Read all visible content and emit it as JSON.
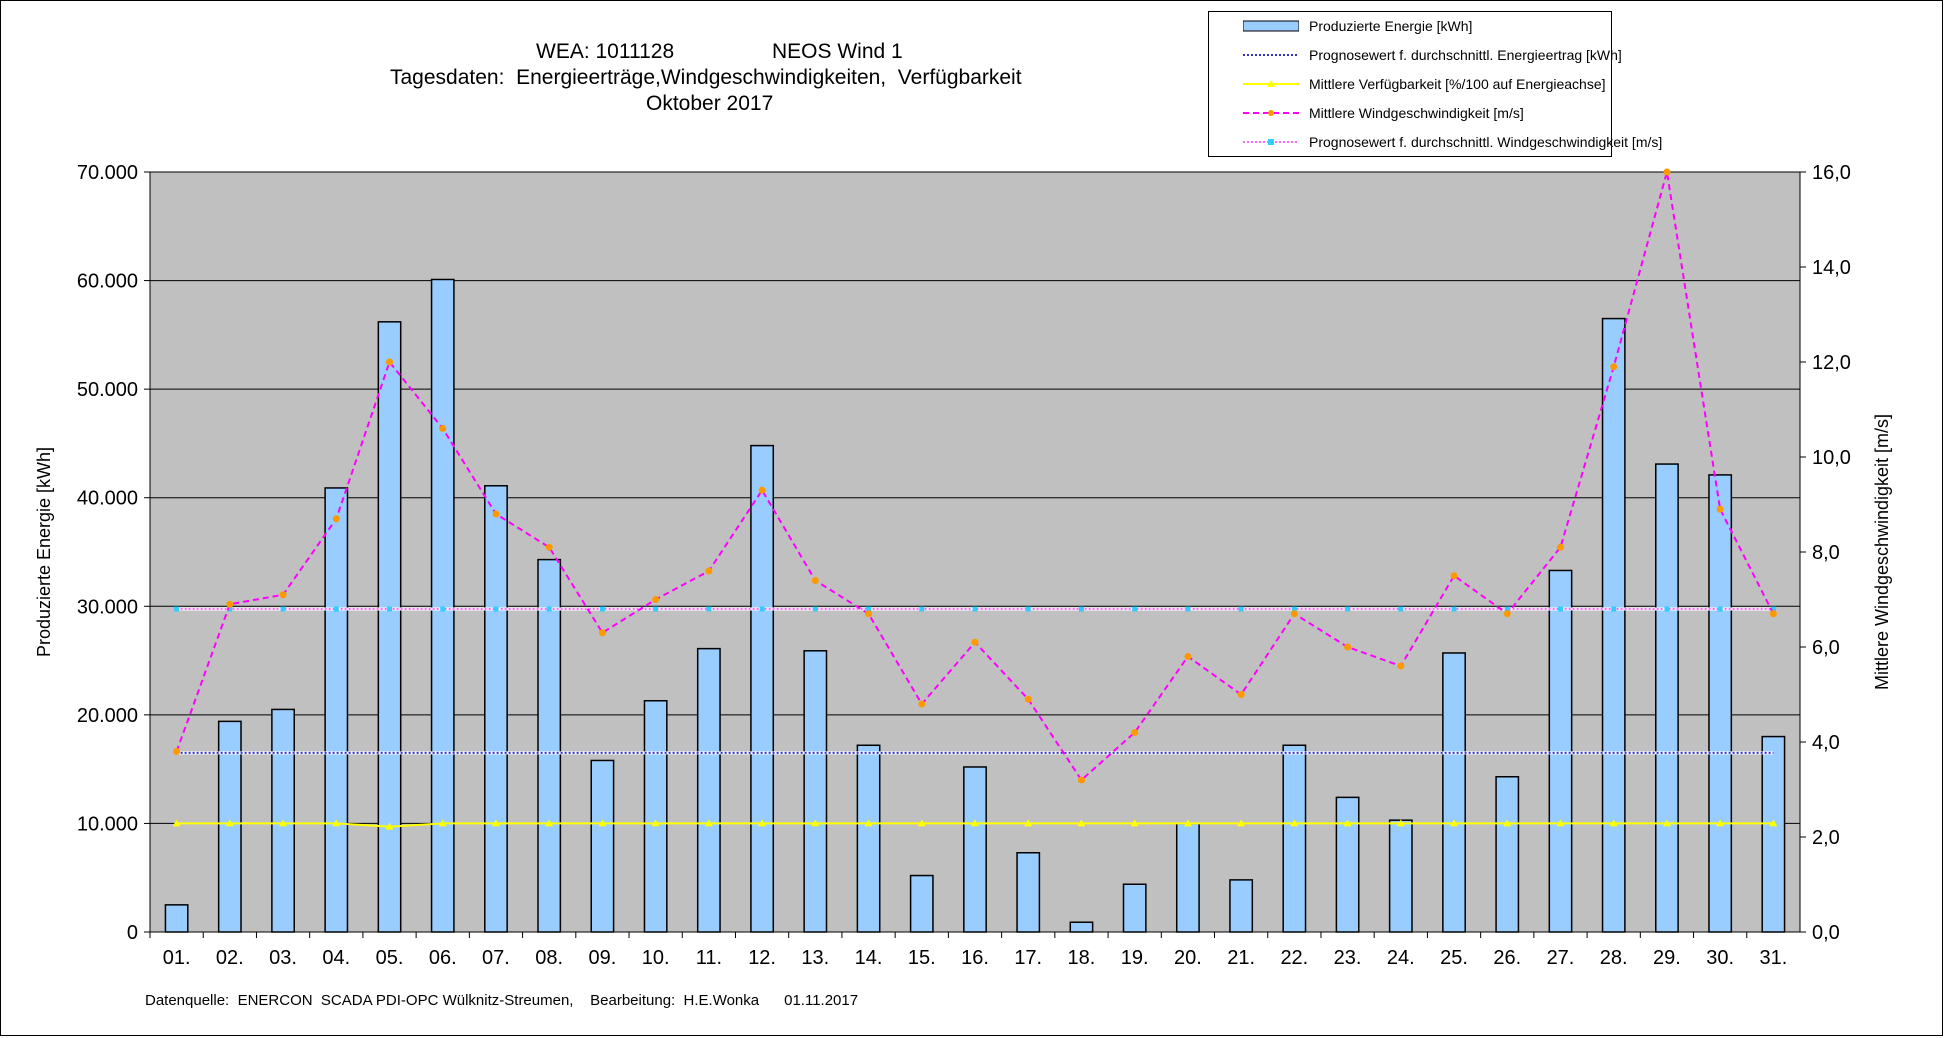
{
  "chart_data": {
    "type": "bar",
    "title_lines": [
      {
        "left": "WEA: 1011128",
        "right": "NEOS Wind 1"
      },
      "Tagesdaten:  Energieerträge,Windgeschwindigkeiten,  Verfügbarkeit",
      "Oktober 2017"
    ],
    "categories": [
      "01.",
      "02.",
      "03.",
      "04.",
      "05.",
      "06.",
      "07.",
      "08.",
      "09.",
      "10.",
      "11.",
      "12.",
      "13.",
      "14.",
      "15.",
      "16.",
      "17.",
      "18.",
      "19.",
      "20.",
      "21.",
      "22.",
      "23.",
      "24.",
      "25.",
      "26.",
      "27.",
      "28.",
      "29.",
      "30.",
      "31."
    ],
    "ylabel_left": "Produzierte Energie [kWh]",
    "ylabel_right": "Mittlere Windgeschwindigkeit [m/s]",
    "ylim_left": [
      0,
      70000
    ],
    "ylim_right": [
      0,
      16
    ],
    "yticks_left": [
      "0",
      "10.000",
      "20.000",
      "30.000",
      "40.000",
      "50.000",
      "60.000",
      "70.000"
    ],
    "yticks_right": [
      "0,0",
      "2,0",
      "4,0",
      "6,0",
      "8,0",
      "10,0",
      "12,0",
      "14,0",
      "16,0"
    ],
    "grid": true,
    "legend_position": "top-right",
    "series": [
      {
        "name": "Produzierte Energie [kWh]",
        "type": "bar",
        "axis": "left",
        "color": "#99ccff",
        "values": [
          2500,
          19400,
          20500,
          40900,
          56200,
          60100,
          41100,
          34300,
          15800,
          21300,
          26100,
          44800,
          25900,
          17200,
          5200,
          15200,
          7300,
          900,
          4400,
          10000,
          4800,
          17200,
          12400,
          10300,
          25700,
          14300,
          33300,
          56500,
          43100,
          42100,
          18000
        ]
      },
      {
        "name": "Prognosewert f. durchschnittl. Energieertrag  [kWh]",
        "type": "line",
        "axis": "left",
        "color": "#3333cc",
        "values": [
          16500,
          16500,
          16500,
          16500,
          16500,
          16500,
          16500,
          16500,
          16500,
          16500,
          16500,
          16500,
          16500,
          16500,
          16500,
          16500,
          16500,
          16500,
          16500,
          16500,
          16500,
          16500,
          16500,
          16500,
          16500,
          16500,
          16500,
          16500,
          16500,
          16500,
          16500
        ]
      },
      {
        "name": "Mittlere Verfügbarkeit [%/100 auf Energieachse]",
        "type": "line",
        "axis": "left",
        "color": "#ffff00",
        "values": [
          10000,
          10000,
          10000,
          10000,
          9700,
          10000,
          10000,
          10000,
          10000,
          10000,
          10000,
          10000,
          10000,
          10000,
          10000,
          10000,
          10000,
          10000,
          10000,
          10000,
          10000,
          10000,
          10000,
          10000,
          10000,
          10000,
          10000,
          10000,
          10000,
          10000,
          10000
        ]
      },
      {
        "name": "Mittlere Windgeschwindigkeit [m/s]",
        "type": "line",
        "axis": "right",
        "color": "#ff00ff",
        "values": [
          3.8,
          6.9,
          7.1,
          8.7,
          12.0,
          10.6,
          8.8,
          8.1,
          6.3,
          7.0,
          7.6,
          9.3,
          7.4,
          6.7,
          4.8,
          6.1,
          4.9,
          3.2,
          4.2,
          5.8,
          5.0,
          6.7,
          6.0,
          5.6,
          7.5,
          6.7,
          8.1,
          11.9,
          16.0,
          8.9,
          6.7
        ]
      },
      {
        "name": "Prognosewert f. durchschnittl. Windgeschwindigkeit [m/s]",
        "type": "line",
        "axis": "right",
        "color": "#ff66ff",
        "values": [
          6.8,
          6.8,
          6.8,
          6.8,
          6.8,
          6.8,
          6.8,
          6.8,
          6.8,
          6.8,
          6.8,
          6.8,
          6.8,
          6.8,
          6.8,
          6.8,
          6.8,
          6.8,
          6.8,
          6.8,
          6.8,
          6.8,
          6.8,
          6.8,
          6.8,
          6.8,
          6.8,
          6.8,
          6.8,
          6.8,
          6.8
        ]
      }
    ]
  },
  "footer": "Datenquelle:  ENERCON  SCADA PDI-OPC Wülknitz-Streumen,    Bearbeitung:  H.E.Wonka      01.11.2017"
}
